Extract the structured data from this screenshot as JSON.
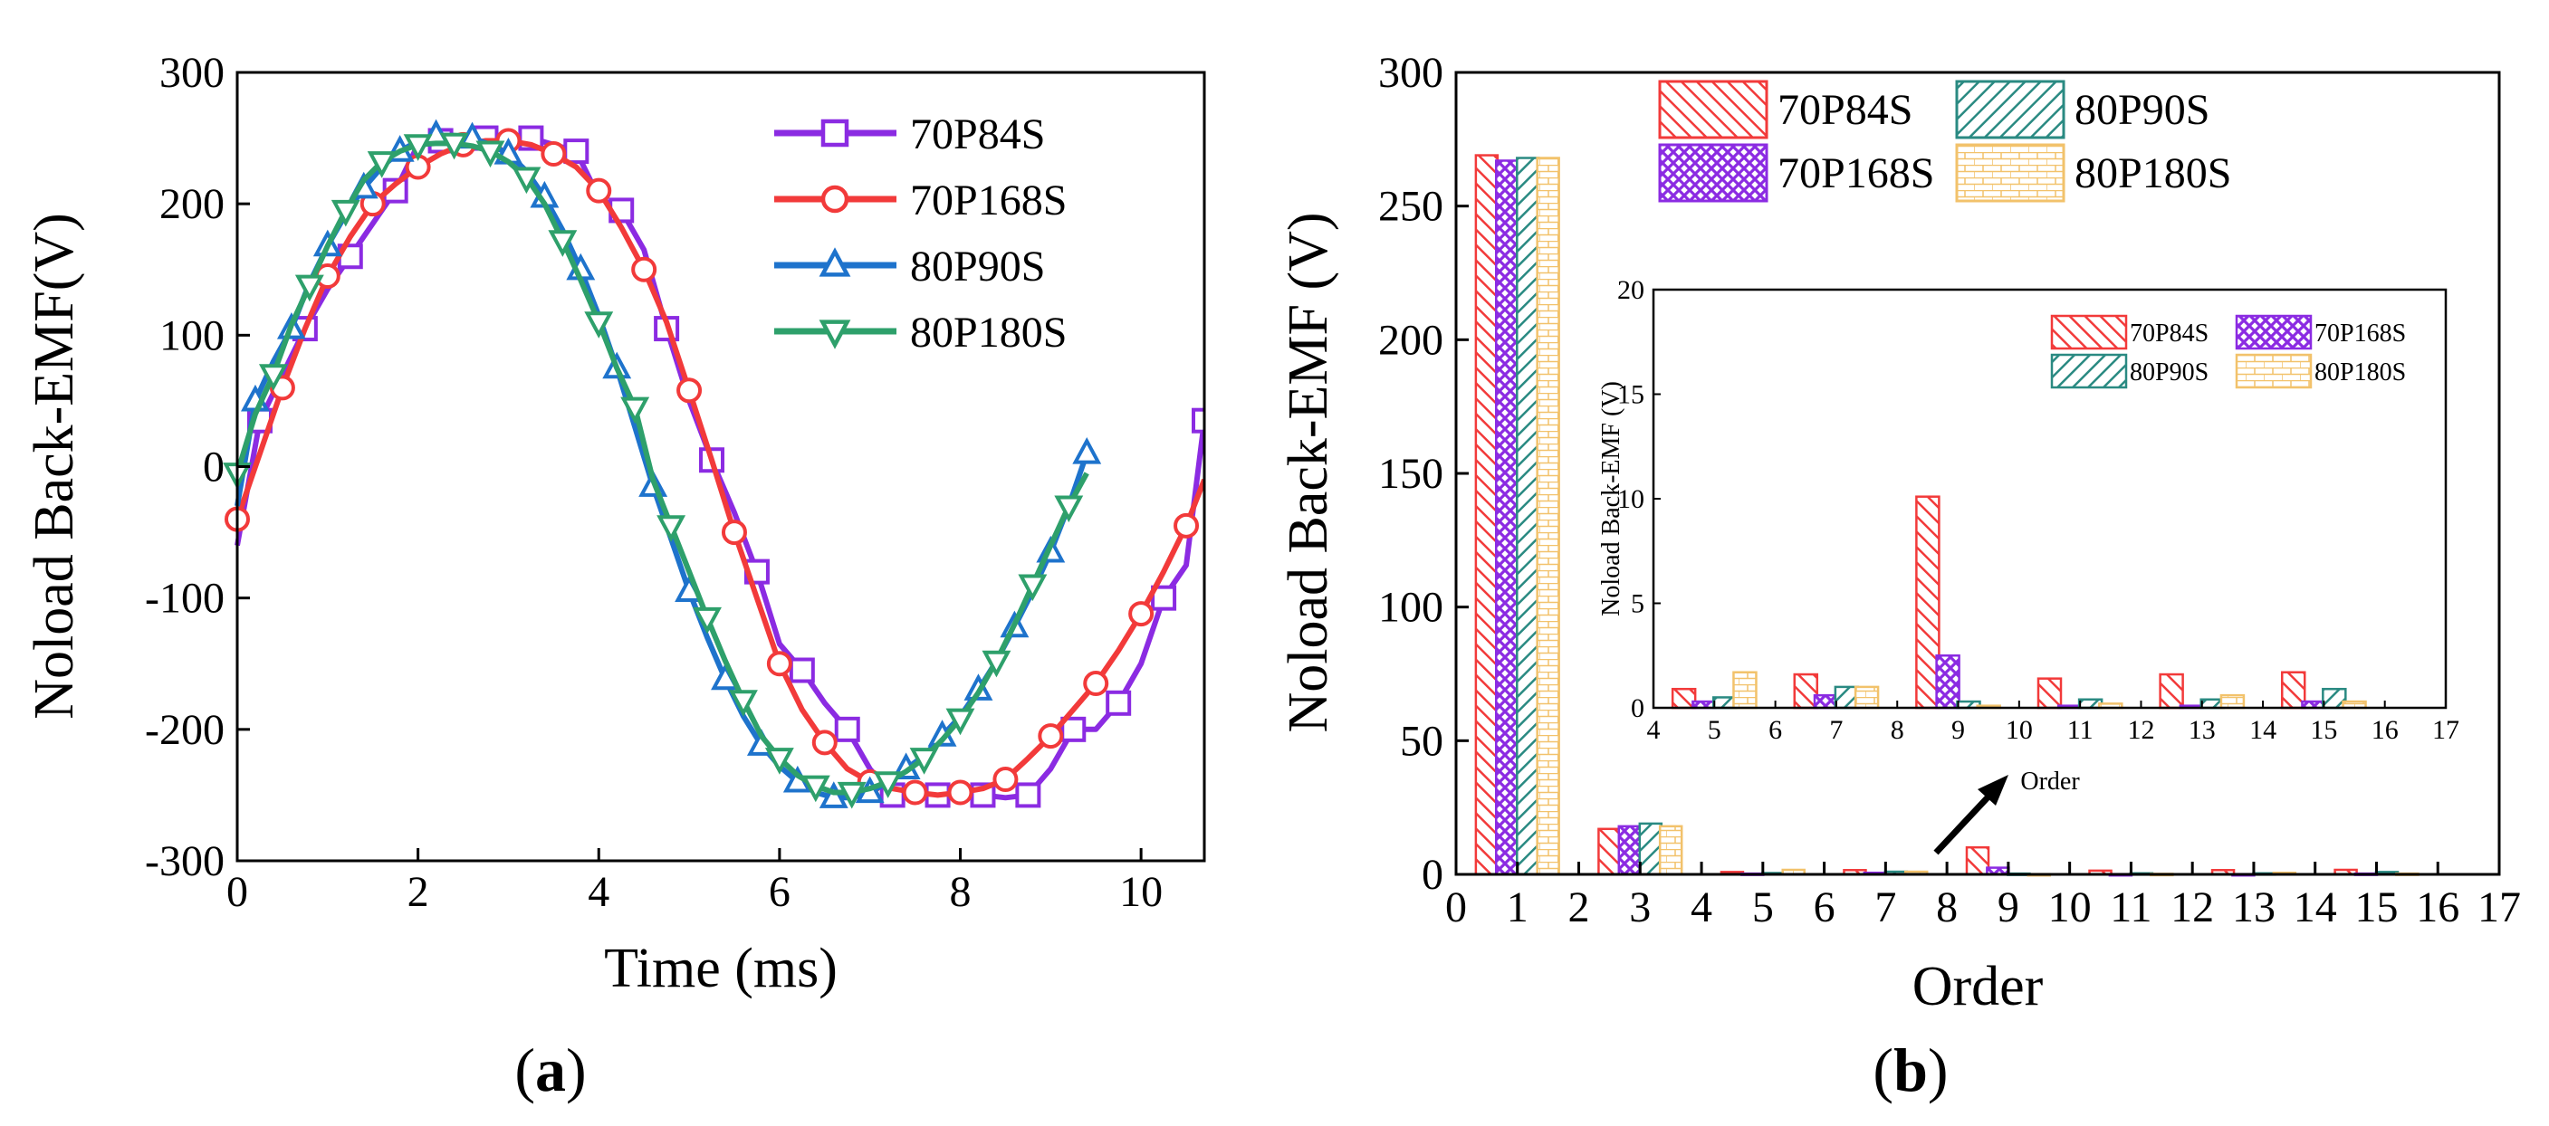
{
  "captions": {
    "a": "a",
    "b": "b"
  },
  "chart_data": [
    {
      "type": "line",
      "panel": "a",
      "xlabel": "Time (ms)",
      "ylabel": "Noload Back-EMF(V)",
      "xlim": [
        0,
        10.7
      ],
      "ylim": [
        -300,
        300
      ],
      "xticks": [
        "0",
        "2",
        "4",
        "6",
        "8",
        "10"
      ],
      "yticks": [
        "-300",
        "-200",
        "-100",
        "0",
        "100",
        "200",
        "300"
      ],
      "series": [
        {
          "name": "70P84S",
          "color": "#8B2BE2",
          "marker": "square",
          "x": [
            0.0,
            0.25,
            0.5,
            0.75,
            1.0,
            1.25,
            1.5,
            1.75,
            2.0,
            2.25,
            2.5,
            2.75,
            3.0,
            3.25,
            3.5,
            3.75,
            4.0,
            4.25,
            4.5,
            4.75,
            5.0,
            5.25,
            5.5,
            5.75,
            6.0,
            6.25,
            6.5,
            6.75,
            7.0,
            7.25,
            7.5,
            7.75,
            8.0,
            8.25,
            8.5,
            8.75,
            9.0,
            9.25,
            9.5,
            9.75,
            10.0,
            10.25,
            10.5,
            10.7
          ],
          "y": [
            -60,
            35,
            70,
            105,
            135,
            160,
            185,
            210,
            245,
            248,
            250,
            250,
            250,
            250,
            245,
            240,
            205,
            195,
            165,
            105,
            50,
            5,
            -35,
            -80,
            -135,
            -155,
            -180,
            -200,
            -230,
            -250,
            -250,
            -250,
            -248,
            -250,
            -252,
            -250,
            -230,
            -200,
            -200,
            -180,
            -150,
            -100,
            -75,
            35
          ]
        },
        {
          "name": "70P168S",
          "color": "#F23A3A",
          "marker": "circle",
          "x": [
            0.0,
            0.25,
            0.5,
            0.75,
            1.0,
            1.25,
            1.5,
            1.75,
            2.0,
            2.25,
            2.5,
            2.75,
            3.0,
            3.25,
            3.5,
            3.75,
            4.0,
            4.25,
            4.5,
            4.75,
            5.0,
            5.25,
            5.5,
            5.75,
            6.0,
            6.25,
            6.5,
            6.75,
            7.0,
            7.25,
            7.5,
            7.75,
            8.0,
            8.25,
            8.5,
            8.75,
            9.0,
            9.25,
            9.5,
            9.75,
            10.0,
            10.25,
            10.5,
            10.7
          ],
          "y": [
            -40,
            10,
            60,
            105,
            145,
            175,
            200,
            215,
            228,
            238,
            245,
            248,
            248,
            245,
            238,
            228,
            210,
            182,
            150,
            110,
            58,
            5,
            -50,
            -100,
            -150,
            -185,
            -210,
            -230,
            -240,
            -245,
            -248,
            -250,
            -248,
            -245,
            -238,
            -222,
            -205,
            -185,
            -165,
            -140,
            -112,
            -80,
            -45,
            -10
          ]
        },
        {
          "name": "80P90S",
          "color": "#1E73CC",
          "marker": "triangle-up",
          "x": [
            0.0,
            0.2,
            0.4,
            0.6,
            0.8,
            1.0,
            1.2,
            1.4,
            1.6,
            1.8,
            2.0,
            2.2,
            2.4,
            2.6,
            2.8,
            3.0,
            3.2,
            3.4,
            3.6,
            3.8,
            4.0,
            4.2,
            4.4,
            4.6,
            4.8,
            5.0,
            5.2,
            5.4,
            5.6,
            5.8,
            6.0,
            6.2,
            6.4,
            6.6,
            6.8,
            7.0,
            7.2,
            7.4,
            7.6,
            7.8,
            8.0,
            8.2,
            8.4,
            8.6,
            8.8,
            9.0,
            9.2,
            9.4
          ],
          "y": [
            -30,
            50,
            80,
            105,
            140,
            168,
            192,
            212,
            228,
            240,
            248,
            252,
            252,
            250,
            245,
            238,
            225,
            205,
            180,
            150,
            115,
            75,
            30,
            -15,
            -55,
            -95,
            -130,
            -162,
            -190,
            -212,
            -228,
            -240,
            -248,
            -252,
            -252,
            -248,
            -240,
            -230,
            -220,
            -205,
            -190,
            -170,
            -148,
            -122,
            -95,
            -65,
            -30,
            10
          ]
        },
        {
          "name": "80P180S",
          "color": "#2EA06B",
          "marker": "triangle-down",
          "x": [
            0.0,
            0.2,
            0.4,
            0.6,
            0.8,
            1.0,
            1.2,
            1.4,
            1.6,
            1.8,
            2.0,
            2.2,
            2.4,
            2.6,
            2.8,
            3.0,
            3.2,
            3.4,
            3.6,
            3.8,
            4.0,
            4.2,
            4.4,
            4.6,
            4.8,
            5.0,
            5.2,
            5.4,
            5.6,
            5.8,
            6.0,
            6.2,
            6.4,
            6.6,
            6.8,
            7.0,
            7.2,
            7.4,
            7.6,
            7.8,
            8.0,
            8.2,
            8.4,
            8.6,
            8.8,
            9.0,
            9.2,
            9.4
          ],
          "y": [
            -5,
            40,
            70,
            108,
            138,
            168,
            195,
            218,
            232,
            240,
            245,
            246,
            246,
            244,
            240,
            232,
            220,
            200,
            172,
            142,
            110,
            75,
            45,
            -10,
            -45,
            -80,
            -115,
            -148,
            -178,
            -205,
            -222,
            -235,
            -243,
            -248,
            -248,
            -245,
            -240,
            -232,
            -222,
            -208,
            -192,
            -172,
            -148,
            -120,
            -90,
            -60,
            -30,
            -5
          ]
        }
      ]
    },
    {
      "type": "bar",
      "panel": "b",
      "xlabel": "Order",
      "ylabel": "Noload Back-EMF (V)",
      "xlim": [
        0,
        17
      ],
      "ylim": [
        0,
        300
      ],
      "xticks": [
        "0",
        "1",
        "2",
        "3",
        "4",
        "5",
        "6",
        "7",
        "8",
        "9",
        "10",
        "11",
        "12",
        "13",
        "14",
        "15",
        "16",
        "17"
      ],
      "yticks": [
        "0",
        "50",
        "100",
        "150",
        "200",
        "250",
        "300"
      ],
      "series": [
        {
          "name": "70P84S",
          "color": "#F23A3A",
          "pattern": "hatch",
          "x": [
            0.5,
            2.5,
            4.5,
            6.5,
            8.5,
            10.5,
            12.5,
            14.5
          ],
          "values": [
            269,
            17,
            0.9,
            1.6,
            10.1,
            1.4,
            1.6,
            1.7
          ]
        },
        {
          "name": "70P168S",
          "color": "#8B2BE2",
          "pattern": "crosshatch",
          "x": [
            0.83,
            2.83,
            4.83,
            6.83,
            8.83,
            10.83,
            12.83,
            14.83
          ],
          "values": [
            267,
            18,
            0.3,
            0.6,
            2.5,
            0.1,
            0.1,
            0.3
          ]
        },
        {
          "name": "80P90S",
          "color": "#2A8A82",
          "pattern": "backhatch",
          "x": [
            1.17,
            3.17,
            5.17,
            7.17,
            9.17,
            11.17,
            13.17,
            15.17
          ],
          "values": [
            268,
            19,
            0.5,
            1.0,
            0.3,
            0.4,
            0.4,
            0.9
          ]
        },
        {
          "name": "80P180S",
          "color": "#F2C26B",
          "pattern": "brick",
          "x": [
            1.5,
            3.5,
            5.5,
            7.5,
            9.5,
            11.5,
            13.5,
            15.5
          ],
          "values": [
            268,
            18,
            1.7,
            1.0,
            0.1,
            0.2,
            0.6,
            0.3
          ]
        }
      ],
      "inset": {
        "xlabel": "Order",
        "ylabel": "Noload Back-EMF (V)",
        "xlim": [
          4,
          17
        ],
        "ylim": [
          0,
          20
        ],
        "xticks": [
          "4",
          "5",
          "6",
          "7",
          "8",
          "9",
          "10",
          "11",
          "12",
          "13",
          "14",
          "15",
          "16",
          "17"
        ],
        "yticks": [
          "0",
          "5",
          "10",
          "15",
          "20"
        ]
      }
    }
  ]
}
